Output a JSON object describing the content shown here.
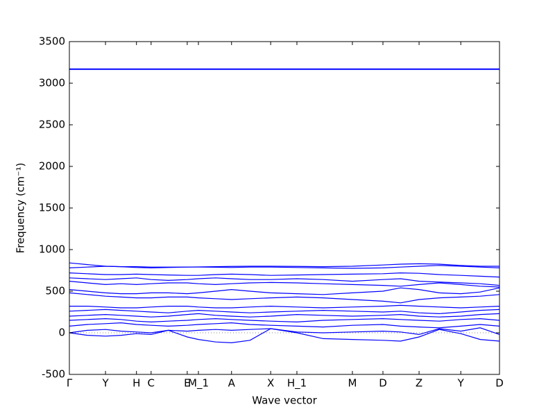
{
  "chart_data": {
    "type": "line",
    "xlabel": "Wave vector",
    "ylabel": "Frequency (cm⁻¹)",
    "xlim": [
      0,
      1
    ],
    "ylim": [
      -500,
      3500
    ],
    "yticks": [
      -500,
      0,
      500,
      1000,
      1500,
      2000,
      2500,
      3000,
      3500
    ],
    "xticks": [
      {
        "value": 0,
        "label": "Γ"
      },
      {
        "value": 0.084,
        "label": "Y"
      },
      {
        "value": 0.156,
        "label": "H"
      },
      {
        "value": 0.19,
        "label": "C"
      },
      {
        "value": 0.274,
        "label": "E"
      },
      {
        "value": 0.3,
        "label": "M_1"
      },
      {
        "value": 0.377,
        "label": "A"
      },
      {
        "value": 0.468,
        "label": "X"
      },
      {
        "value": 0.529,
        "label": "H_1"
      },
      {
        "value": 0.658,
        "label": "M"
      },
      {
        "value": 0.729,
        "label": "D"
      },
      {
        "value": 0.813,
        "label": "Z"
      },
      {
        "value": 0.91,
        "label": "Y"
      },
      {
        "value": 1,
        "label": "D"
      }
    ],
    "zero_line": true,
    "x": [
      0,
      0.042,
      0.084,
      0.12,
      0.156,
      0.19,
      0.23,
      0.274,
      0.3,
      0.34,
      0.377,
      0.42,
      0.468,
      0.529,
      0.59,
      0.658,
      0.729,
      0.77,
      0.813,
      0.86,
      0.91,
      0.955,
      1
    ],
    "series": [
      {
        "color": "#0000ff",
        "values": [
          3172,
          3172,
          3172,
          3172,
          3172,
          3172,
          3172,
          3172,
          3172,
          3172,
          3172,
          3172,
          3172,
          3172,
          3172,
          3172,
          3172,
          3172,
          3172,
          3172,
          3172,
          3172,
          3172
        ]
      },
      {
        "color": "#0000ff",
        "values": [
          3165,
          3165,
          3165,
          3165,
          3165,
          3165,
          3165,
          3165,
          3165,
          3165,
          3165,
          3165,
          3165,
          3165,
          3165,
          3165,
          3165,
          3165,
          3165,
          3165,
          3165,
          3165,
          3165
        ]
      },
      {
        "color": "#0000ff",
        "values": [
          840,
          820,
          800,
          795,
          795,
          790,
          790,
          790,
          792,
          795,
          798,
          800,
          800,
          798,
          795,
          800,
          815,
          825,
          830,
          825,
          810,
          800,
          800
        ]
      },
      {
        "color": "#0000ff",
        "values": [
          780,
          790,
          800,
          795,
          785,
          780,
          785,
          790,
          790,
          788,
          785,
          790,
          790,
          785,
          780,
          775,
          780,
          790,
          800,
          810,
          800,
          790,
          780
        ]
      },
      {
        "color": "#0000ff",
        "values": [
          720,
          710,
          700,
          700,
          705,
          700,
          695,
          690,
          690,
          700,
          705,
          700,
          690,
          695,
          700,
          705,
          710,
          720,
          715,
          700,
          690,
          680,
          670
        ]
      },
      {
        "color": "#0000ff",
        "values": [
          660,
          650,
          640,
          650,
          660,
          640,
          630,
          640,
          650,
          660,
          650,
          640,
          640,
          650,
          640,
          620,
          640,
          650,
          620,
          610,
          600,
          590,
          570
        ]
      },
      {
        "color": "#0000ff",
        "values": [
          620,
          600,
          580,
          590,
          580,
          590,
          600,
          600,
          590,
          580,
          590,
          600,
          605,
          600,
          590,
          580,
          570,
          560,
          580,
          600,
          580,
          560,
          550
        ]
      },
      {
        "color": "#0000ff",
        "values": [
          520,
          500,
          480,
          470,
          470,
          480,
          480,
          470,
          480,
          500,
          520,
          500,
          480,
          470,
          460,
          480,
          500,
          540,
          520,
          480,
          470,
          490,
          540
        ]
      },
      {
        "color": "#0000ff",
        "values": [
          480,
          460,
          440,
          430,
          420,
          420,
          430,
          430,
          420,
          410,
          400,
          410,
          420,
          430,
          420,
          400,
          380,
          360,
          400,
          420,
          430,
          440,
          460
        ]
      },
      {
        "color": "#0000ff",
        "values": [
          320,
          320,
          310,
          300,
          300,
          310,
          320,
          320,
          310,
          300,
          300,
          310,
          320,
          310,
          300,
          310,
          320,
          330,
          320,
          310,
          300,
          310,
          320
        ]
      },
      {
        "color": "#0000ff",
        "values": [
          260,
          270,
          280,
          270,
          260,
          250,
          240,
          260,
          270,
          260,
          250,
          240,
          250,
          260,
          270,
          260,
          250,
          260,
          240,
          230,
          250,
          270,
          280
        ]
      },
      {
        "color": "#0000ff",
        "values": [
          200,
          210,
          220,
          210,
          200,
          190,
          200,
          220,
          230,
          210,
          200,
          190,
          200,
          220,
          210,
          200,
          210,
          220,
          200,
          190,
          200,
          220,
          230
        ]
      },
      {
        "color": "#0000ff",
        "values": [
          150,
          160,
          170,
          160,
          140,
          130,
          140,
          150,
          160,
          170,
          160,
          150,
          140,
          130,
          150,
          160,
          170,
          160,
          150,
          140,
          160,
          170,
          150
        ]
      },
      {
        "color": "#0000ff",
        "values": [
          80,
          100,
          110,
          120,
          100,
          90,
          80,
          90,
          100,
          110,
          120,
          100,
          90,
          80,
          70,
          90,
          100,
          80,
          70,
          60,
          80,
          100,
          80
        ]
      },
      {
        "color": "#0000ff",
        "values": [
          0,
          30,
          40,
          20,
          10,
          0,
          30,
          20,
          30,
          40,
          30,
          40,
          50,
          10,
          0,
          10,
          20,
          10,
          -20,
          50,
          20,
          60,
          -20
        ]
      },
      {
        "color": "#0000ff",
        "values": [
          0,
          -30,
          -40,
          -30,
          -10,
          -20,
          30,
          -50,
          -80,
          -110,
          -120,
          -90,
          50,
          0,
          -70,
          -80,
          -90,
          -100,
          -50,
          40,
          -10,
          -80,
          -100
        ]
      }
    ]
  }
}
